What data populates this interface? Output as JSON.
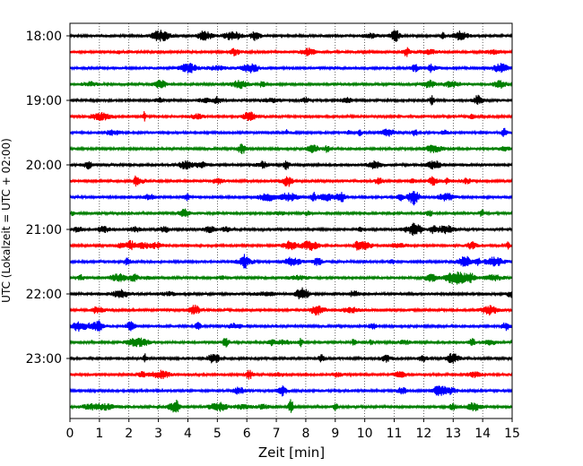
{
  "chart_data": {
    "type": "line",
    "xlabel": "Zeit  [min]",
    "ylabel": "UTC (Lokalzeit = UTC + 02:00)",
    "xlim": [
      0,
      15
    ],
    "x_ticks": [
      "0",
      "1",
      "2",
      "3",
      "4",
      "5",
      "6",
      "7",
      "8",
      "9",
      "10",
      "11",
      "12",
      "13",
      "14",
      "15"
    ],
    "y_tick_labels": [
      "18:00",
      "19:00",
      "20:00",
      "21:00",
      "22:00",
      "23:00"
    ],
    "traces": [
      {
        "start": "18:00",
        "color": "#000000"
      },
      {
        "start": "18:15",
        "color": "#ff0000"
      },
      {
        "start": "18:30",
        "color": "#0000ff"
      },
      {
        "start": "18:45",
        "color": "#008000"
      },
      {
        "start": "19:00",
        "color": "#000000"
      },
      {
        "start": "19:15",
        "color": "#ff0000"
      },
      {
        "start": "19:30",
        "color": "#0000ff"
      },
      {
        "start": "19:45",
        "color": "#008000"
      },
      {
        "start": "20:00",
        "color": "#000000"
      },
      {
        "start": "20:15",
        "color": "#ff0000"
      },
      {
        "start": "20:30",
        "color": "#0000ff"
      },
      {
        "start": "20:45",
        "color": "#008000"
      },
      {
        "start": "21:00",
        "color": "#000000"
      },
      {
        "start": "21:15",
        "color": "#ff0000"
      },
      {
        "start": "21:30",
        "color": "#0000ff"
      },
      {
        "start": "21:45",
        "color": "#008000"
      },
      {
        "start": "22:00",
        "color": "#000000"
      },
      {
        "start": "22:15",
        "color": "#ff0000"
      },
      {
        "start": "22:30",
        "color": "#0000ff"
      },
      {
        "start": "22:45",
        "color": "#008000"
      },
      {
        "start": "23:00",
        "color": "#000000"
      },
      {
        "start": "23:15",
        "color": "#ff0000"
      },
      {
        "start": "23:30",
        "color": "#0000ff"
      },
      {
        "start": "23:45",
        "color": "#008000"
      }
    ],
    "vertical_grid": "dotted, every 1 min"
  }
}
